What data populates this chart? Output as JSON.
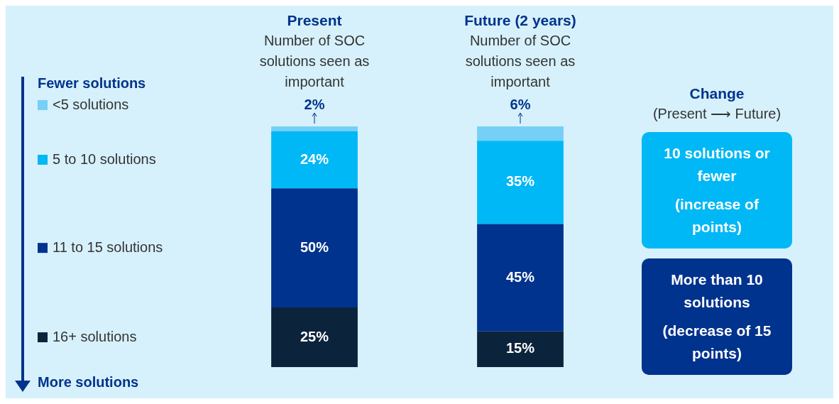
{
  "chart_data": {
    "type": "bar",
    "stacked": true,
    "categories": [
      "Present",
      "Future (2 years)"
    ],
    "series": [
      {
        "name": "16+ solutions",
        "color": "#0c233c",
        "values": [
          25,
          15
        ],
        "value_labels": [
          "25%",
          "15%"
        ]
      },
      {
        "name": "11 to 15 solutions",
        "color": "#00338d",
        "values": [
          50,
          45
        ],
        "value_labels": [
          "50%",
          "45%"
        ]
      },
      {
        "name": "5 to 10 solutions",
        "color": "#00b8f5",
        "values": [
          24,
          35
        ],
        "value_labels": [
          "24%",
          "35%"
        ]
      },
      {
        "name": "<5 solutions",
        "color": "#76cff7",
        "values": [
          2,
          6
        ],
        "value_labels": [
          "2%",
          "6%"
        ]
      }
    ],
    "legend": "left",
    "annotations": [
      "Number of SOC solutions seen as important",
      "Number of SOC solutions seen as important",
      "Fewer solutions",
      "More solutions",
      "Change",
      "(Present ⟶ Future)",
      "10 solutions or fewer",
      "(increase of points)",
      "More than 10 solutions",
      "(decrease of 15 points)"
    ]
  }
}
